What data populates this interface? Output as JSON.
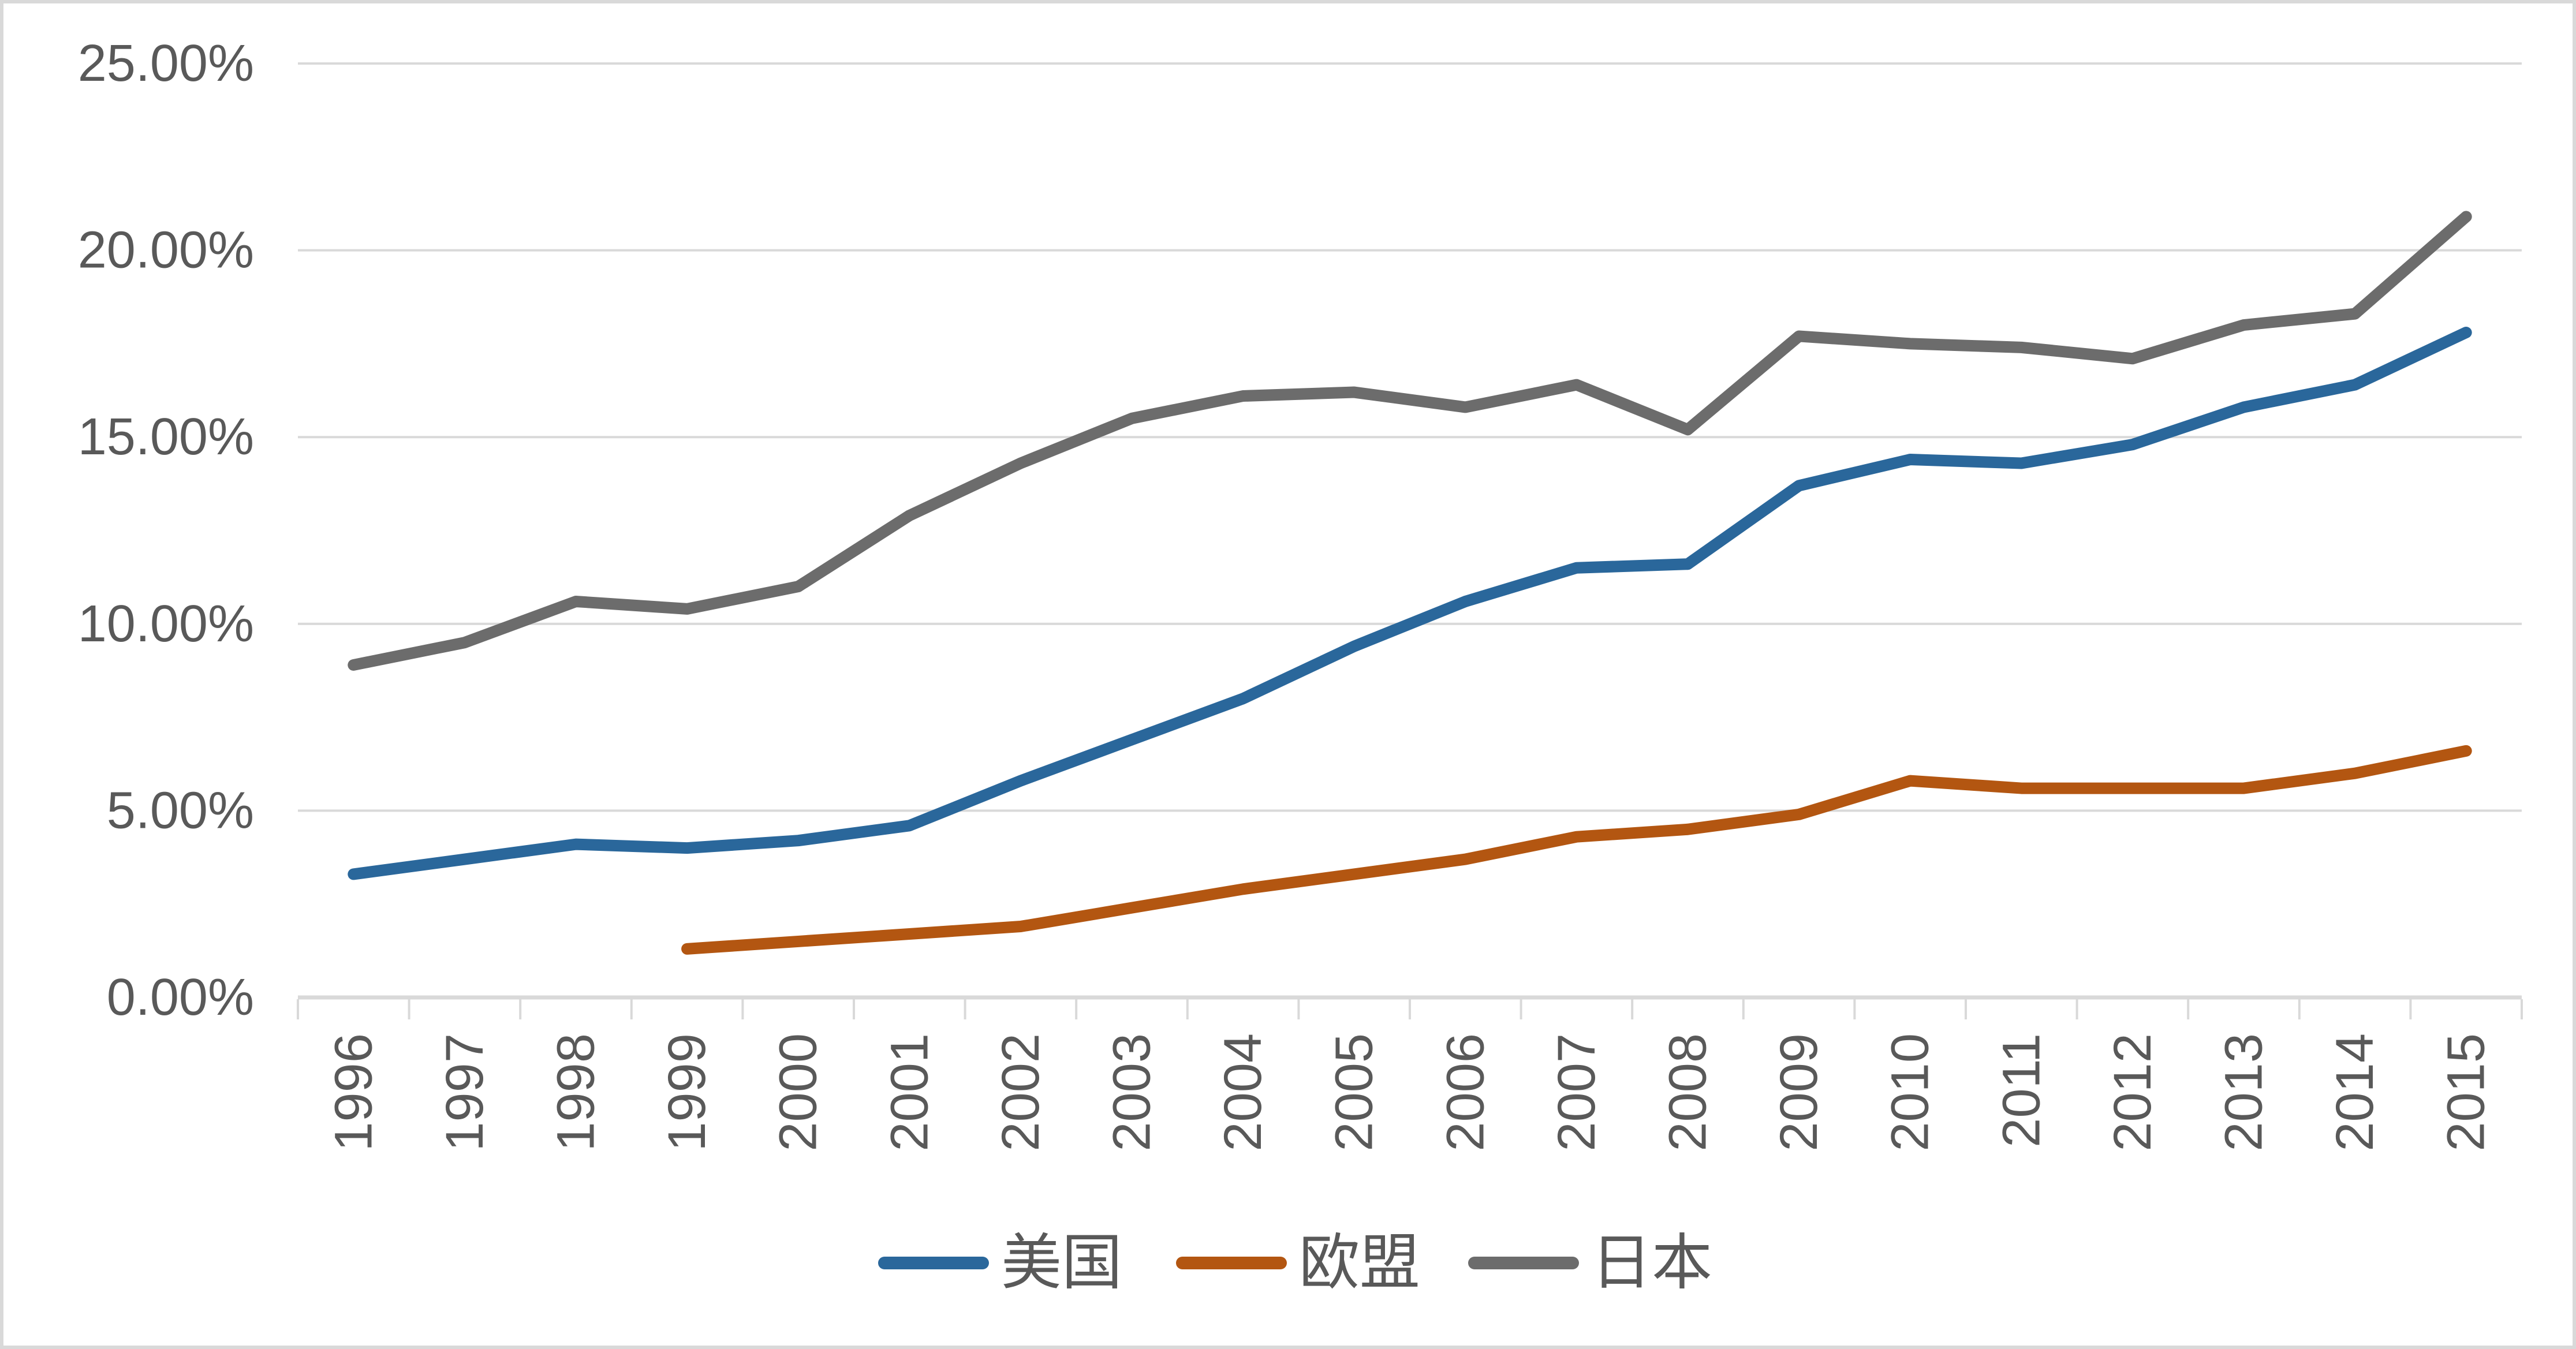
{
  "chart_data": {
    "type": "line",
    "title": "",
    "xlabel": "",
    "ylabel": "",
    "categories": [
      "1996",
      "1997",
      "1998",
      "1999",
      "2000",
      "2001",
      "2002",
      "2003",
      "2004",
      "2005",
      "2006",
      "2007",
      "2008",
      "2009",
      "2010",
      "2011",
      "2012",
      "2013",
      "2014",
      "2015"
    ],
    "series": [
      {
        "id": "usa",
        "name": "美国",
        "color": "#2A679B",
        "values": [
          3.3,
          3.7,
          4.1,
          4.0,
          4.2,
          4.6,
          5.8,
          6.9,
          8.0,
          9.4,
          10.6,
          11.5,
          11.6,
          13.7,
          14.4,
          14.3,
          14.8,
          15.8,
          16.4,
          17.8
        ]
      },
      {
        "id": "eu",
        "name": "欧盟",
        "color": "#B35611",
        "values": [
          null,
          null,
          null,
          1.3,
          1.5,
          1.7,
          1.9,
          2.4,
          2.9,
          3.3,
          3.7,
          4.3,
          4.5,
          4.9,
          5.8,
          5.6,
          5.6,
          5.6,
          6.0,
          6.6
        ]
      },
      {
        "id": "japan",
        "name": "日本",
        "color": "#6C6C6C",
        "values": [
          8.9,
          9.5,
          10.6,
          10.4,
          11.0,
          12.9,
          14.3,
          15.5,
          16.1,
          16.2,
          15.8,
          16.4,
          15.2,
          17.7,
          17.5,
          17.4,
          17.1,
          18.0,
          18.3,
          20.9
        ]
      }
    ],
    "ylim": [
      0,
      25
    ],
    "ytick_values": [
      0,
      5,
      10,
      15,
      20,
      25
    ],
    "ytick_labels": [
      "0.00%",
      "5.00%",
      "10.00%",
      "15.00%",
      "20.00%",
      "25.00%"
    ],
    "grid": "horizontal",
    "legend_position": "bottom",
    "colors": {
      "gridline": "#D9D9D9",
      "axis": "#D9D9D9",
      "border": "#D9D9D9",
      "text": "#595959"
    }
  }
}
